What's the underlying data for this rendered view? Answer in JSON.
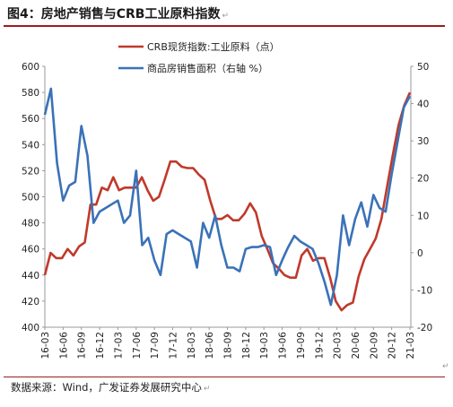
{
  "title": "图4：房地产销售与CRB工业原料指数",
  "title_mark": "↵",
  "source": "数据来源：Wind，广发证券发展研究中心",
  "source_mark": "↵",
  "corner_mark": "↵",
  "colors": {
    "red": "#c0392b",
    "blue": "#3a72b8",
    "accent": "#9c1d1d"
  },
  "chart_data": {
    "type": "line",
    "left_axis": {
      "min": 400,
      "max": 600,
      "ticks": [
        400,
        420,
        440,
        460,
        480,
        500,
        520,
        540,
        560,
        580,
        600
      ]
    },
    "right_axis": {
      "min": -20,
      "max": 50,
      "ticks": [
        -20,
        -10,
        0,
        10,
        20,
        30,
        40,
        50
      ]
    },
    "x_ticks": [
      "16-03",
      "16-06",
      "16-09",
      "16-12",
      "17-03",
      "17-06",
      "17-09",
      "17-12",
      "18-03",
      "18-06",
      "18-09",
      "18-12",
      "19-03",
      "19-06",
      "19-09",
      "19-12",
      "20-03",
      "20-06",
      "20-09",
      "20-12",
      "21-03"
    ],
    "legend_position": "top-right",
    "series": [
      {
        "name": "CRB现货指数:工业原料（点）",
        "axis": "left",
        "color": "#c0392b",
        "values": [
          440,
          457,
          453,
          453,
          460,
          455,
          462,
          465,
          494,
          494,
          507,
          505,
          515,
          505,
          507,
          507,
          507,
          515,
          505,
          497,
          500,
          513,
          527,
          527,
          523,
          522,
          522,
          517,
          513,
          497,
          483,
          483,
          486,
          482,
          482,
          487,
          495,
          488,
          470,
          460,
          449,
          445,
          440,
          438,
          438,
          455,
          460,
          451,
          453,
          453,
          438,
          420,
          413,
          417,
          419,
          439,
          452,
          460,
          468,
          483,
          508,
          532,
          555,
          570,
          580
        ]
      },
      {
        "name": "商品房销售面积（右轴 %）",
        "axis": "right",
        "color": "#3a72b8",
        "values": [
          37,
          44,
          24,
          14,
          18,
          19,
          34,
          26,
          8,
          11,
          12,
          13,
          14,
          8,
          10,
          22,
          2,
          4,
          -2,
          -6,
          5,
          6,
          5,
          4,
          3,
          -4,
          8,
          4,
          10,
          2,
          -4,
          -4,
          -5,
          1,
          1.5,
          1.5,
          2,
          1.5,
          -6,
          -2,
          1.5,
          4.5,
          3,
          2,
          1,
          -3,
          -8,
          -14,
          -6,
          10,
          2,
          9,
          13.5,
          7,
          15.5,
          12,
          11,
          21,
          30,
          39,
          42
        ]
      }
    ]
  }
}
